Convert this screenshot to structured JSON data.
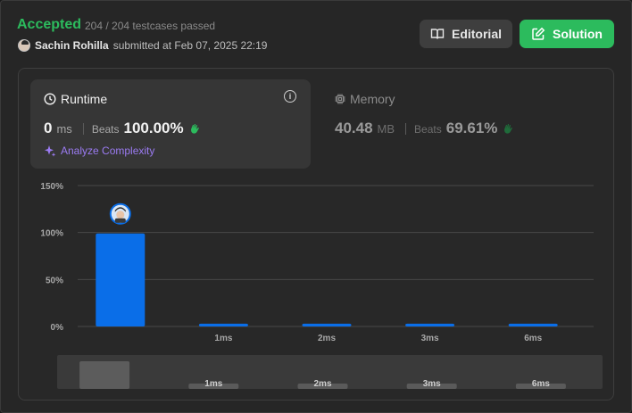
{
  "header": {
    "status": "Accepted",
    "tests_passed": "204 / 204 testcases passed",
    "submitter_name": "Sachin Rohilla",
    "submitted_text": "submitted at Feb 07, 2025 22:19"
  },
  "actions": {
    "editorial_label": "Editorial",
    "solution_label": "Solution"
  },
  "runtime": {
    "title": "Runtime",
    "value": "0",
    "unit": "ms",
    "beats_label": "Beats",
    "beats_value": "100.00%",
    "analyze_label": "Analyze Complexity"
  },
  "memory": {
    "title": "Memory",
    "value": "40.48",
    "unit": "MB",
    "beats_label": "Beats",
    "beats_value": "69.61%"
  },
  "colors": {
    "accepted": "#2cbb5d",
    "bar": "#0a6ee8",
    "analyze": "#9b7bf2"
  },
  "chart_data": {
    "type": "bar",
    "categories": [
      "",
      "1ms",
      "2ms",
      "3ms",
      "6ms"
    ],
    "values": [
      99,
      3,
      3,
      3,
      3
    ],
    "ylim": [
      0,
      150
    ],
    "yticks": [
      "0%",
      "50%",
      "100%",
      "150%"
    ],
    "ytick_values": [
      0,
      50,
      100,
      150
    ],
    "grid": true,
    "highlight_index": 0,
    "overview": {
      "categories": [
        "",
        "1ms",
        "2ms",
        "3ms",
        "6ms"
      ]
    }
  }
}
